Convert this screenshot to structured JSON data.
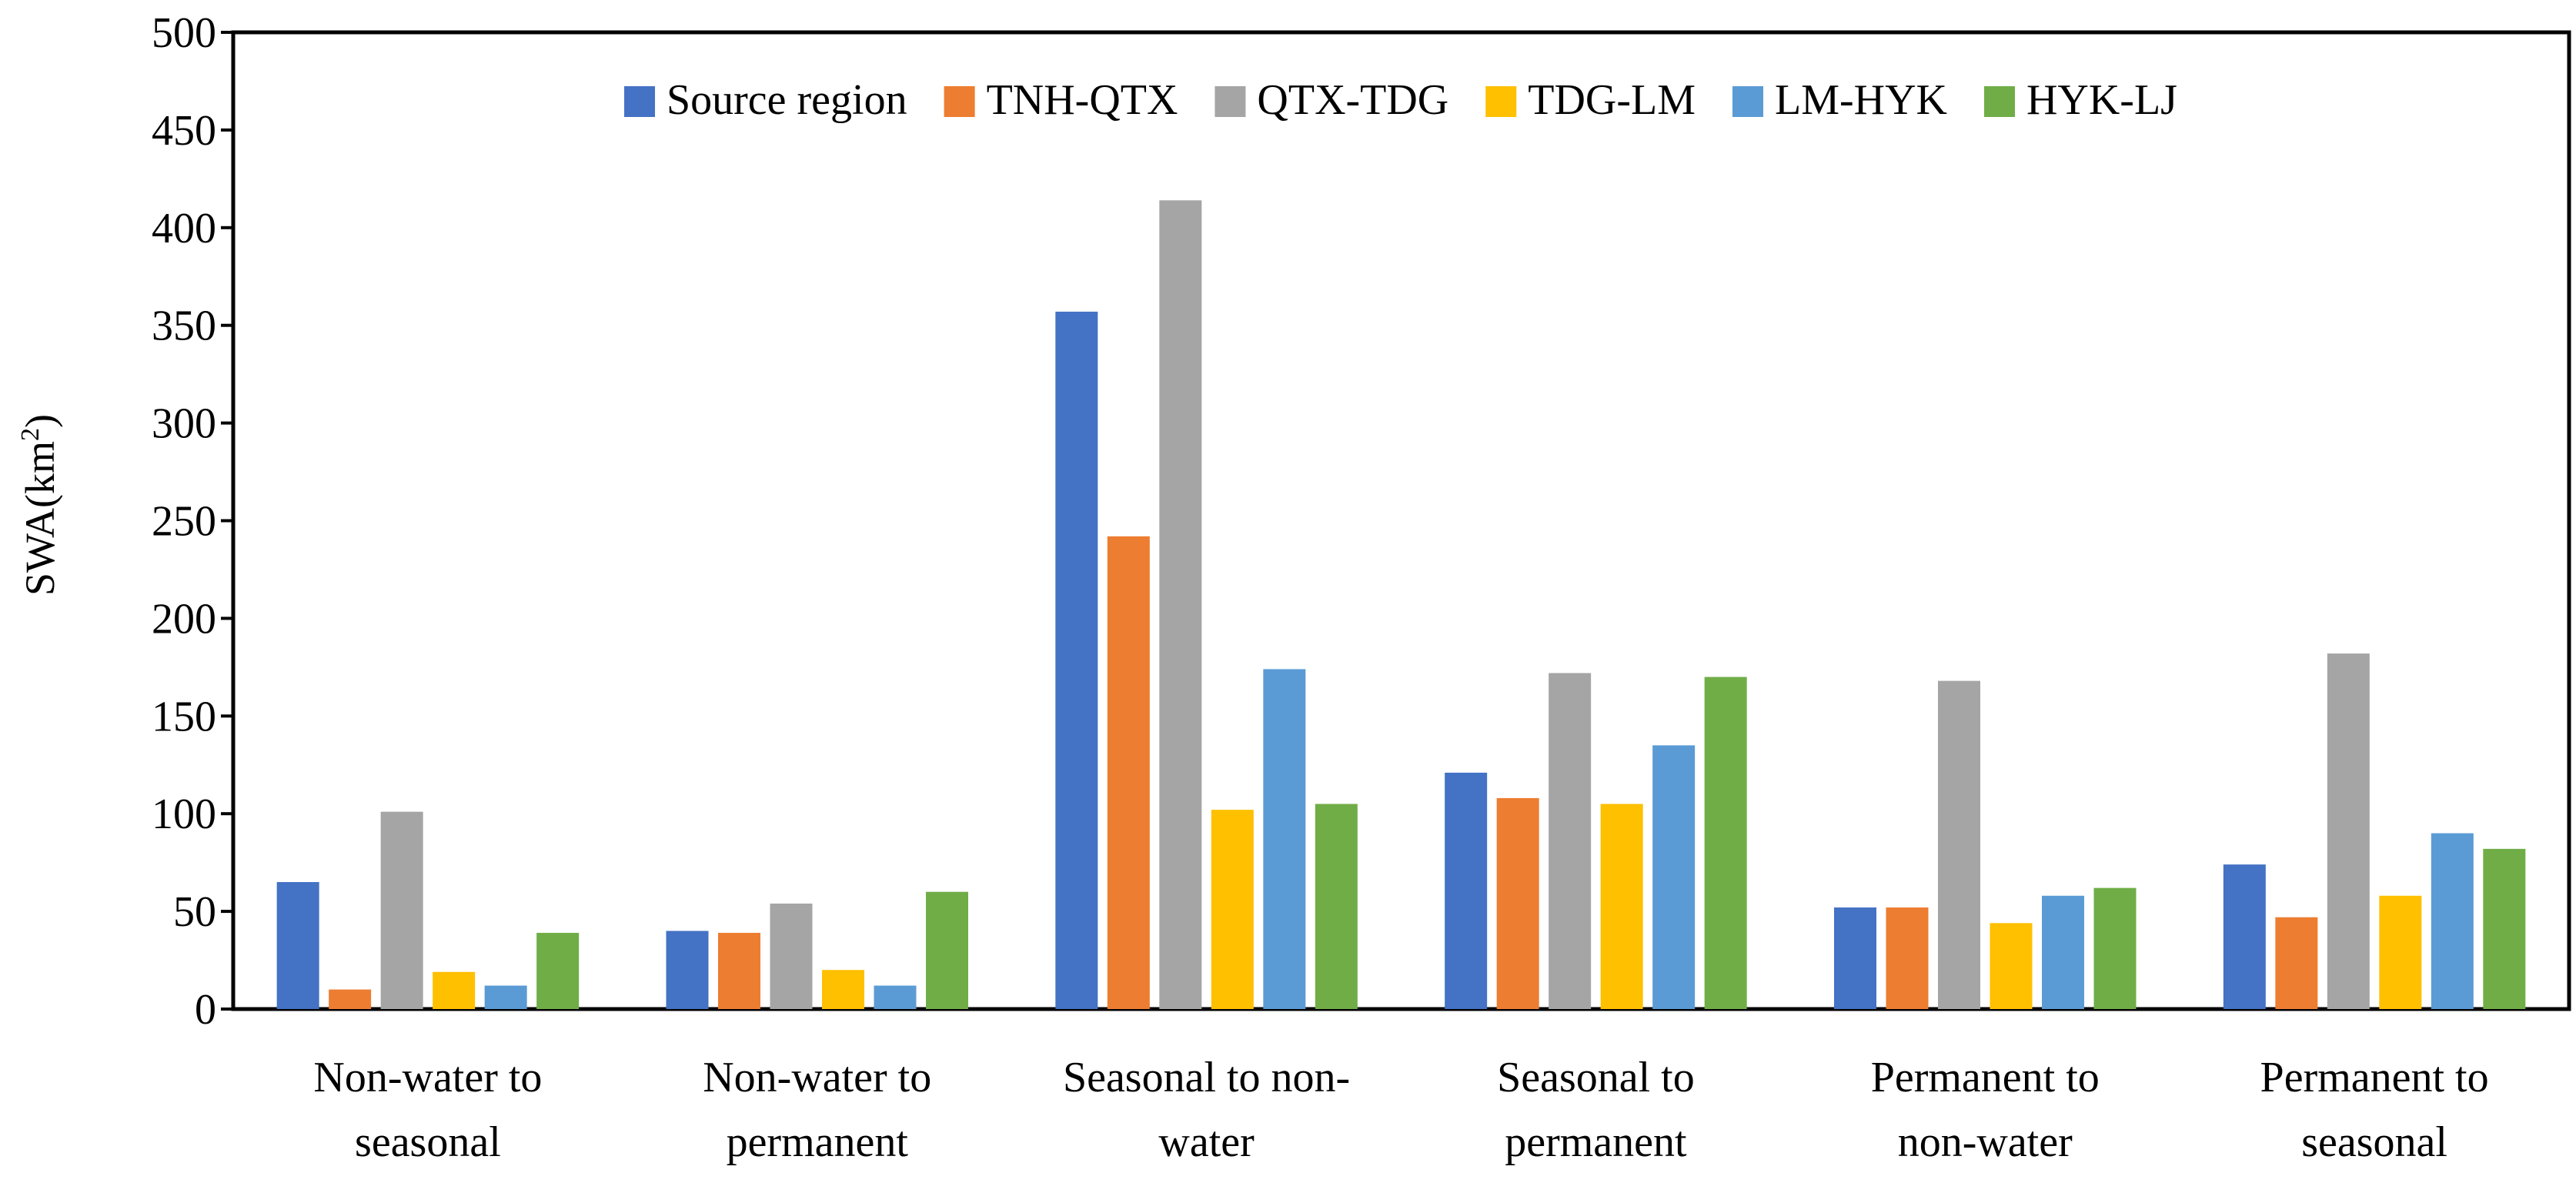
{
  "chart_data": {
    "type": "bar",
    "title": "",
    "xlabel": "",
    "ylabel": "SWA(km",
    "ylabel_superscript": "2",
    "ylabel_suffix": ")",
    "ylim": [
      0,
      500
    ],
    "yticks": [
      0,
      50,
      100,
      150,
      200,
      250,
      300,
      350,
      400,
      450,
      500
    ],
    "grid": false,
    "legend_position": "top-center",
    "categories": [
      [
        "Non-water to",
        "seasonal"
      ],
      [
        "Non-water to",
        "permanent"
      ],
      [
        "Seasonal to non-",
        "water"
      ],
      [
        "Seasonal to",
        "permanent"
      ],
      [
        "Permanent to",
        "non-water"
      ],
      [
        "Permanent to",
        "seasonal"
      ]
    ],
    "series": [
      {
        "name": "Source region",
        "color": "#4472C4",
        "values": [
          65,
          40,
          357,
          121,
          52,
          74
        ]
      },
      {
        "name": "TNH-QTX",
        "color": "#ED7D31",
        "values": [
          10,
          39,
          242,
          108,
          52,
          47
        ]
      },
      {
        "name": "QTX-TDG",
        "color": "#A5A5A5",
        "values": [
          101,
          54,
          414,
          172,
          168,
          182
        ]
      },
      {
        "name": "TDG-LM",
        "color": "#FFC000",
        "values": [
          19,
          20,
          102,
          105,
          44,
          58
        ]
      },
      {
        "name": "LM-HYK",
        "color": "#5B9BD5",
        "values": [
          12,
          12,
          174,
          135,
          58,
          90
        ]
      },
      {
        "name": "HYK-LJ",
        "color": "#70AD47",
        "values": [
          39,
          60,
          105,
          170,
          62,
          82
        ]
      }
    ]
  }
}
